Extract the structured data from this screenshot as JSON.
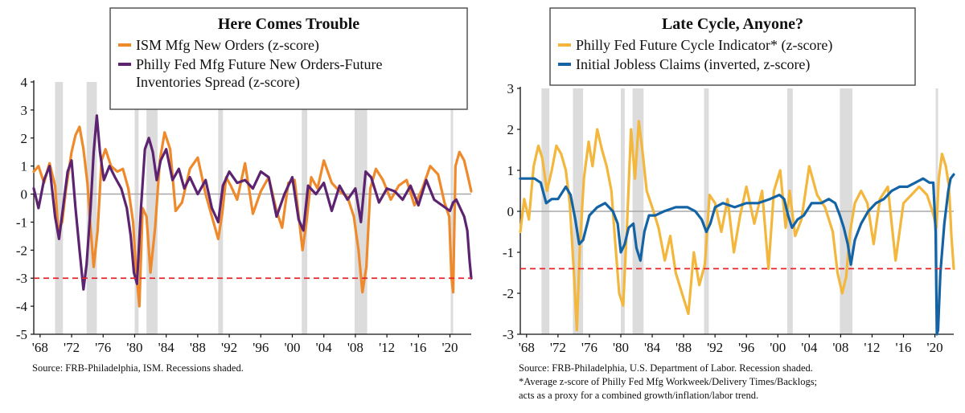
{
  "chart_data": [
    {
      "type": "line",
      "title": "Here Comes Trouble",
      "x_tick_labels": [
        "'68",
        "'72",
        "'76",
        "'80",
        "'84",
        "'88",
        "'92",
        "'96",
        "'00",
        "'04",
        "'08",
        "'12",
        "'16",
        "'20"
      ],
      "x_tick_years": [
        1968,
        1972,
        1976,
        1980,
        1984,
        1988,
        1992,
        1996,
        2000,
        2004,
        2008,
        2012,
        2016,
        2020
      ],
      "xlim": [
        1967.2,
        2022.7
      ],
      "ylim": [
        -5,
        4
      ],
      "y_ticks": [
        4,
        3,
        2,
        1,
        0,
        -1,
        -2,
        -3,
        -4,
        -5
      ],
      "reference_line": {
        "y": -3,
        "color": "#e8232a",
        "style": "dashed"
      },
      "zero_line": true,
      "recessions": [
        [
          1969.9,
          1970.9
        ],
        [
          1973.9,
          1975.2
        ],
        [
          1980.0,
          1980.5
        ],
        [
          1981.5,
          1982.9
        ],
        [
          1990.6,
          1991.2
        ],
        [
          2001.2,
          2001.9
        ],
        [
          2007.9,
          2009.5
        ],
        [
          2020.1,
          2020.4
        ]
      ],
      "series": [
        {
          "name": "ISM Mfg New Orders (z-score)",
          "color": "#ee8a2c",
          "x": [
            1967.2,
            1967.8,
            1968.5,
            1969.2,
            1969.9,
            1970.3,
            1970.8,
            1971.3,
            1972.0,
            1972.5,
            1973.0,
            1973.5,
            1974.0,
            1974.4,
            1974.8,
            1975.3,
            1975.8,
            1976.3,
            1977.0,
            1977.8,
            1978.5,
            1979.2,
            1979.8,
            1980.2,
            1980.6,
            1981.0,
            1981.5,
            1982.0,
            1982.6,
            1983.2,
            1983.8,
            1984.5,
            1985.2,
            1986.0,
            1987.0,
            1988.0,
            1989.0,
            1989.8,
            1990.6,
            1991.1,
            1991.6,
            1992.2,
            1993.0,
            1994.0,
            1995.0,
            1996.0,
            1997.0,
            1998.0,
            1998.7,
            1999.5,
            2000.3,
            2000.9,
            2001.3,
            2001.8,
            2002.4,
            2003.2,
            2004.0,
            2005.0,
            2006.0,
            2007.0,
            2007.8,
            2008.4,
            2008.9,
            2009.4,
            2009.9,
            2010.6,
            2011.5,
            2012.5,
            2013.5,
            2014.5,
            2015.5,
            2016.5,
            2017.5,
            2018.5,
            2019.3,
            2019.9,
            2020.2,
            2020.4,
            2020.7,
            2021.2,
            2021.8,
            2022.3,
            2022.7
          ],
          "y": [
            0.8,
            1.0,
            0.4,
            1.1,
            0.3,
            -1.3,
            -1.0,
            0.2,
            1.5,
            2.1,
            2.4,
            1.6,
            0.4,
            -1.2,
            -2.6,
            -1.3,
            1.2,
            1.6,
            1.0,
            0.8,
            0.9,
            0.2,
            -1.0,
            -2.8,
            -4.0,
            -0.5,
            -0.8,
            -2.8,
            -1.2,
            1.2,
            2.2,
            1.6,
            -0.6,
            -0.3,
            0.9,
            1.3,
            0.0,
            -0.8,
            -1.6,
            -0.7,
            0.6,
            0.3,
            -0.2,
            1.1,
            -0.7,
            0.1,
            0.6,
            -0.6,
            -1.2,
            0.4,
            0.5,
            -1.0,
            -2.0,
            -1.0,
            0.6,
            0.2,
            1.2,
            0.4,
            0.1,
            -0.1,
            -0.8,
            -2.0,
            -3.5,
            -2.6,
            0.2,
            0.9,
            0.5,
            -0.2,
            0.3,
            0.5,
            -0.4,
            0.2,
            1.0,
            0.7,
            -0.3,
            -0.8,
            -3.0,
            -3.5,
            1.0,
            1.5,
            1.2,
            0.6,
            0.1
          ]
        },
        {
          "name": "Philly Fed Mfg Future New Orders-Future Inventories Spread (z-score)",
          "color": "#5c2470",
          "x": [
            1967.2,
            1967.8,
            1968.5,
            1969.2,
            1969.9,
            1970.4,
            1970.9,
            1971.5,
            1972.0,
            1972.5,
            1973.0,
            1973.5,
            1973.9,
            1974.4,
            1974.8,
            1975.2,
            1975.6,
            1976.1,
            1976.8,
            1977.5,
            1978.3,
            1979.0,
            1979.5,
            1979.9,
            1980.3,
            1980.8,
            1981.3,
            1981.8,
            1982.3,
            1982.8,
            1983.3,
            1984.0,
            1984.8,
            1985.6,
            1986.3,
            1987.0,
            1988.0,
            1989.0,
            1989.8,
            1990.6,
            1991.2,
            1992.0,
            1993.0,
            1994.0,
            1995.0,
            1996.0,
            1997.0,
            1998.0,
            1999.0,
            2000.0,
            2000.8,
            2001.4,
            2002.0,
            2003.0,
            2004.0,
            2005.0,
            2006.0,
            2007.0,
            2008.0,
            2008.7,
            2009.3,
            2010.0,
            2011.0,
            2012.0,
            2013.0,
            2014.0,
            2015.0,
            2016.0,
            2017.0,
            2018.0,
            2019.0,
            2020.0,
            2020.4,
            2020.8,
            2021.3,
            2021.8,
            2022.2,
            2022.5,
            2022.7
          ],
          "y": [
            0.2,
            -0.5,
            0.5,
            1.0,
            -0.8,
            -1.6,
            -0.5,
            0.8,
            1.2,
            -0.5,
            -2.0,
            -3.4,
            -2.5,
            -0.5,
            1.5,
            2.8,
            1.5,
            0.5,
            1.0,
            0.6,
            0.2,
            -0.5,
            -1.5,
            -2.8,
            -3.2,
            -0.5,
            1.6,
            2.0,
            1.5,
            0.5,
            1.2,
            1.6,
            0.5,
            0.9,
            0.2,
            0.6,
            0.0,
            0.5,
            -0.5,
            -1.0,
            0.3,
            0.8,
            0.4,
            0.5,
            0.2,
            0.8,
            0.6,
            -0.8,
            0.0,
            0.6,
            -0.9,
            -1.3,
            0.3,
            0.0,
            0.4,
            -0.6,
            0.3,
            -0.2,
            0.2,
            -1.0,
            0.8,
            0.6,
            -0.3,
            0.2,
            0.1,
            -0.2,
            0.3,
            -0.4,
            0.5,
            -0.2,
            -0.4,
            -0.6,
            -0.3,
            -0.2,
            -0.5,
            -0.8,
            -1.3,
            -2.4,
            -3.0
          ]
        }
      ],
      "source": "Source:  FRB-Philadelphia, ISM. Recessions shaded."
    },
    {
      "type": "line",
      "title": "Late Cycle, Anyone?",
      "x_tick_labels": [
        "'68",
        "'72",
        "'76",
        "'80",
        "'84",
        "'88",
        "'92",
        "'96",
        "'00",
        "'04",
        "'08",
        "'12",
        "'16",
        "'20"
      ],
      "x_tick_years": [
        1968,
        1972,
        1976,
        1980,
        1984,
        1988,
        1992,
        1996,
        2000,
        2004,
        2008,
        2012,
        2016,
        2020
      ],
      "xlim": [
        1967.2,
        2022.4
      ],
      "ylim": [
        -3,
        3
      ],
      "y_ticks": [
        3,
        2,
        1,
        0,
        -1,
        -2,
        -3
      ],
      "reference_line": {
        "y": -1.4,
        "color": "#e8232a",
        "style": "dashed"
      },
      "zero_line": true,
      "recessions": [
        [
          1969.9,
          1970.9
        ],
        [
          1973.9,
          1975.2
        ],
        [
          1980.0,
          1980.5
        ],
        [
          1981.5,
          1982.9
        ],
        [
          1990.6,
          1991.2
        ],
        [
          2001.2,
          2001.9
        ],
        [
          2007.9,
          2009.5
        ],
        [
          2020.1,
          2020.4
        ]
      ],
      "series": [
        {
          "name": "Philly Fed Future Cycle Indicator* (z-score)",
          "color": "#f2b73c",
          "x": [
            1967.2,
            1967.7,
            1968.3,
            1968.9,
            1969.5,
            1970.0,
            1970.6,
            1971.2,
            1971.8,
            1972.4,
            1973.0,
            1973.5,
            1974.0,
            1974.4,
            1974.8,
            1975.3,
            1975.9,
            1976.4,
            1977.0,
            1977.6,
            1978.2,
            1978.8,
            1979.3,
            1979.8,
            1980.3,
            1980.8,
            1981.3,
            1981.8,
            1982.3,
            1982.8,
            1983.3,
            1984.0,
            1984.8,
            1985.6,
            1986.3,
            1987.0,
            1987.8,
            1988.6,
            1989.3,
            1990.0,
            1990.7,
            1991.3,
            1992.0,
            1992.8,
            1993.6,
            1994.4,
            1995.2,
            1996.0,
            1997.0,
            1998.0,
            1998.8,
            1999.5,
            2000.3,
            2001.0,
            2001.5,
            2002.2,
            2003.0,
            2004.0,
            2005.0,
            2006.0,
            2007.0,
            2007.6,
            2008.2,
            2008.7,
            2009.2,
            2009.8,
            2010.6,
            2011.4,
            2012.2,
            2013.0,
            2014.0,
            2015.0,
            2016.0,
            2017.0,
            2018.0,
            2019.0,
            2019.7,
            2020.2,
            2020.5,
            2020.9,
            2021.4,
            2021.8,
            2022.1,
            2022.4
          ],
          "y": [
            -0.5,
            0.3,
            -0.2,
            1.1,
            1.6,
            1.3,
            0.5,
            1.0,
            1.6,
            1.4,
            1.0,
            0.2,
            -1.4,
            -2.9,
            -0.8,
            0.8,
            1.7,
            1.1,
            2.0,
            1.5,
            1.1,
            0.5,
            -0.8,
            -2.0,
            -2.3,
            -0.3,
            2.0,
            0.8,
            2.2,
            1.4,
            0.5,
            0.1,
            -0.4,
            -1.2,
            -0.6,
            -1.5,
            -2.0,
            -2.5,
            -1.0,
            -1.8,
            -1.3,
            0.4,
            0.2,
            -0.5,
            0.3,
            -1.0,
            -0.1,
            0.6,
            -0.3,
            0.5,
            -1.4,
            0.5,
            1.0,
            -0.4,
            0.5,
            -0.6,
            -0.2,
            1.1,
            0.4,
            0.1,
            -0.5,
            -1.5,
            -2.0,
            -1.6,
            -0.5,
            0.2,
            0.5,
            0.2,
            -0.8,
            0.3,
            0.6,
            -1.2,
            0.2,
            0.4,
            0.6,
            0.4,
            0.0,
            -0.4,
            0.8,
            1.4,
            1.1,
            0.6,
            -0.6,
            -1.4
          ]
        },
        {
          "name": "Initial Jobless Claims (inverted, z-score)",
          "color": "#1464a5",
          "x": [
            1967.2,
            1968.0,
            1969.0,
            1969.8,
            1970.5,
            1971.2,
            1972.0,
            1973.0,
            1973.6,
            1974.2,
            1974.7,
            1975.2,
            1976.0,
            1977.0,
            1978.0,
            1979.0,
            1979.6,
            1980.0,
            1980.5,
            1981.0,
            1981.6,
            1982.0,
            1982.5,
            1983.0,
            1983.6,
            1984.4,
            1985.5,
            1987.0,
            1988.5,
            1989.5,
            1990.3,
            1990.9,
            1991.4,
            1992.0,
            1993.0,
            1994.5,
            1996.0,
            1997.5,
            1999.0,
            2000.2,
            2000.8,
            2001.3,
            2001.8,
            2002.5,
            2003.3,
            2004.3,
            2005.5,
            2006.5,
            2007.3,
            2007.9,
            2008.4,
            2008.9,
            2009.3,
            2009.8,
            2010.6,
            2011.5,
            2012.5,
            2013.5,
            2014.5,
            2015.5,
            2016.5,
            2017.5,
            2018.5,
            2019.3,
            2019.8,
            2020.1,
            2020.25,
            2020.4,
            2020.7,
            2021.2,
            2021.7,
            2022.0,
            2022.4
          ],
          "y": [
            0.8,
            0.8,
            0.8,
            0.7,
            0.2,
            0.3,
            0.3,
            0.6,
            0.4,
            -0.2,
            -0.8,
            -0.7,
            -0.1,
            0.1,
            0.2,
            0.0,
            -0.3,
            -1.0,
            -0.8,
            -0.4,
            -0.3,
            -0.9,
            -1.2,
            -0.5,
            -0.1,
            -0.1,
            0.0,
            0.1,
            0.1,
            0.0,
            -0.2,
            -0.5,
            -0.3,
            0.1,
            0.2,
            0.1,
            0.2,
            0.2,
            0.3,
            0.4,
            0.3,
            -0.1,
            -0.4,
            -0.2,
            -0.1,
            0.2,
            0.2,
            0.3,
            0.2,
            -0.1,
            -0.4,
            -0.8,
            -1.3,
            -0.7,
            -0.3,
            0.0,
            0.2,
            0.3,
            0.5,
            0.6,
            0.6,
            0.7,
            0.8,
            0.7,
            0.7,
            -0.5,
            -3.0,
            -2.9,
            -1.5,
            -0.3,
            0.5,
            0.8,
            0.9
          ]
        }
      ],
      "source": "Source:  FRB-Philadelphia, U.S. Department of Labor. Recession shaded.",
      "footnote": [
        "*Average z-score of Philly Fed Mfg Workweek/Delivery Times/Backlogs;",
        "acts as a proxy for a combined growth/inflation/labor trend."
      ]
    }
  ]
}
